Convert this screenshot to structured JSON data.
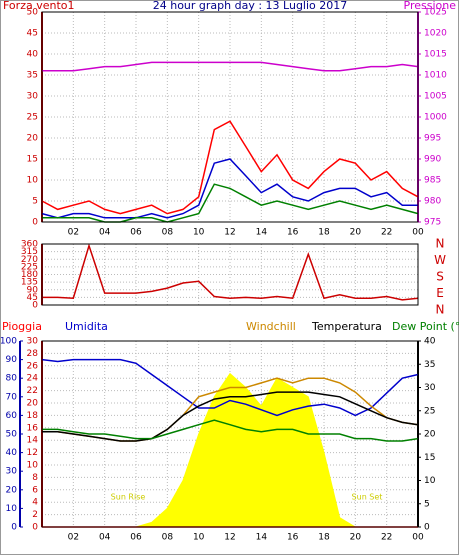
{
  "chart_data": [
    {
      "type": "line",
      "title": "24 hour graph day : 13 Luglio 2017",
      "y_label": "Forza vento1",
      "y2_label": "Pressione",
      "x": [
        0,
        1,
        2,
        3,
        4,
        5,
        6,
        7,
        8,
        9,
        10,
        11,
        12,
        13,
        14,
        15,
        16,
        17,
        18,
        19,
        20,
        21,
        22,
        23,
        24
      ],
      "xlim": [
        0,
        24
      ],
      "xticks": [
        {
          "value": 2,
          "label": "02"
        },
        {
          "value": 4,
          "label": "04"
        },
        {
          "value": 6,
          "label": "06"
        },
        {
          "value": 8,
          "label": "08"
        },
        10,
        12,
        14,
        16,
        18,
        20,
        22,
        {
          "value": 24,
          "label": "00"
        }
      ],
      "ylim": [
        0,
        50
      ],
      "yticks": [
        0,
        5,
        10,
        15,
        20,
        25,
        30,
        35,
        40,
        45,
        50
      ],
      "y2lim": [
        975,
        1025
      ],
      "y2ticks": [
        975,
        980,
        985,
        990,
        995,
        1000,
        1005,
        1010,
        1015,
        1020,
        1025
      ],
      "y_color": "#cc0000",
      "y2_color": "#cc00cc",
      "grid": true,
      "series": [
        {
          "color": "#ff0000",
          "values": [
            5,
            3,
            4,
            5,
            3,
            2,
            3,
            4,
            2,
            3,
            6,
            22,
            24,
            18,
            12,
            16,
            10,
            8,
            12,
            15,
            14,
            10,
            12,
            8,
            6
          ]
        },
        {
          "color": "#0000cc",
          "values": [
            2,
            1,
            2,
            2,
            1,
            1,
            1,
            2,
            1,
            2,
            4,
            14,
            15,
            11,
            7,
            9,
            6,
            5,
            7,
            8,
            8,
            6,
            7,
            4,
            4
          ]
        },
        {
          "color": "#008000",
          "values": [
            1,
            1,
            1,
            1,
            0,
            0,
            1,
            1,
            0,
            1,
            2,
            9,
            8,
            6,
            4,
            5,
            4,
            3,
            4,
            5,
            4,
            3,
            4,
            3,
            2
          ]
        },
        {
          "name": "Pressione",
          "axis": "y2",
          "color": "#cc00cc",
          "values": [
            1011,
            1011,
            1011,
            1011.5,
            1012,
            1012,
            1012.5,
            1013,
            1013,
            1013,
            1013,
            1013,
            1013,
            1013,
            1013,
            1012.5,
            1012,
            1011.5,
            1011,
            1011,
            1011.5,
            1012,
            1012,
            1012.5,
            1012
          ]
        }
      ]
    },
    {
      "type": "line",
      "direction_labels": [
        "N",
        "W",
        "S",
        "E",
        "N"
      ],
      "x": [
        0,
        1,
        2,
        3,
        4,
        5,
        6,
        7,
        8,
        9,
        10,
        11,
        12,
        13,
        14,
        15,
        16,
        17,
        18,
        19,
        20,
        21,
        22,
        23,
        24
      ],
      "xlim": [
        0,
        24
      ],
      "xticks": [
        2,
        4,
        6,
        8,
        10,
        12,
        14,
        16,
        18,
        20,
        22,
        24
      ],
      "ylim": [
        0,
        360
      ],
      "yticks": [
        0,
        45,
        90,
        135,
        180,
        225,
        270,
        315,
        360
      ],
      "y_color": "#cc0000",
      "grid": true,
      "series": [
        {
          "color": "#cc0000",
          "values": [
            45,
            45,
            40,
            350,
            70,
            70,
            70,
            80,
            100,
            130,
            140,
            50,
            40,
            45,
            40,
            50,
            40,
            300,
            40,
            60,
            40,
            40,
            50,
            30,
            40
          ]
        }
      ]
    },
    {
      "type": "line",
      "annotations": [
        "Sun Rise",
        "Sun Set"
      ],
      "x": [
        0,
        1,
        2,
        3,
        4,
        5,
        6,
        7,
        8,
        9,
        10,
        11,
        12,
        13,
        14,
        15,
        16,
        17,
        18,
        19,
        20,
        21,
        22,
        23,
        24
      ],
      "xlim": [
        0,
        24
      ],
      "xticks": [
        {
          "value": 2,
          "label": "02"
        },
        {
          "value": 4,
          "label": "04"
        },
        {
          "value": 6,
          "label": "06"
        },
        {
          "value": 8,
          "label": "08"
        },
        10,
        12,
        14,
        16,
        18,
        20,
        22,
        {
          "value": 24,
          "label": "00"
        }
      ],
      "ylim": [
        0,
        30
      ],
      "yticks": [
        0,
        2,
        4,
        6,
        8,
        10,
        12,
        14,
        16,
        18,
        20,
        22,
        24,
        26,
        28,
        30
      ],
      "y3lim": [
        0,
        100
      ],
      "y3ticks": [
        0,
        10,
        20,
        30,
        40,
        50,
        60,
        70,
        80,
        90,
        100
      ],
      "y2lim": [
        0,
        40
      ],
      "y2ticks": [
        0,
        5,
        10,
        15,
        20,
        25,
        30,
        35,
        40
      ],
      "y_color": "#cc0000",
      "y3_color": "#0000aa",
      "y2_color": "#000000",
      "grid": true,
      "series": [
        {
          "axis": "y2",
          "fill": true,
          "color": "#ffff00",
          "values": [
            0,
            0,
            0,
            0,
            0,
            0,
            0,
            1,
            4,
            10,
            20,
            28,
            33,
            30,
            26,
            32,
            30,
            28,
            16,
            2,
            0,
            0,
            0,
            0,
            0
          ]
        },
        {
          "name": "Pioggia",
          "color": "#ff0000",
          "values": [
            0,
            0,
            0,
            0,
            0,
            0,
            0,
            0,
            0,
            0,
            0,
            0,
            0,
            0,
            0,
            0,
            0,
            0,
            0,
            0,
            0,
            0,
            0,
            0,
            0
          ]
        },
        {
          "name": "Umidita",
          "axis": "y3",
          "color": "#0000cc",
          "values": [
            90,
            89,
            90,
            90,
            90,
            90,
            88,
            82,
            76,
            70,
            64,
            64,
            68,
            66,
            63,
            60,
            63,
            65,
            66,
            64,
            60,
            64,
            72,
            80,
            82
          ]
        },
        {
          "name": "Windchill",
          "axis": "y2",
          "color": "#cc8800",
          "values": [
            20.5,
            20.5,
            20,
            19.5,
            19,
            18.5,
            18.5,
            19,
            21,
            24,
            28,
            29,
            30,
            30,
            31,
            32,
            31,
            32,
            32,
            31,
            29,
            26,
            23.5,
            22.5,
            22
          ]
        },
        {
          "name": "Temperatura",
          "axis": "y2",
          "color": "#000000",
          "values": [
            20.5,
            20.5,
            20,
            19.5,
            19,
            18.5,
            18.5,
            19,
            21,
            24,
            26,
            27.5,
            28,
            28,
            28.5,
            29,
            29,
            29,
            28.5,
            28,
            26.5,
            25,
            23.5,
            22.5,
            22
          ]
        },
        {
          "name": "Dew Point (°C",
          "axis": "y2",
          "color": "#008000",
          "values": [
            21,
            21,
            20.5,
            20,
            20,
            19.5,
            19,
            19,
            20,
            21,
            22,
            23,
            22,
            21,
            20.5,
            21,
            21,
            20,
            20,
            20,
            19,
            19,
            18.5,
            18.5,
            19
          ]
        }
      ]
    }
  ]
}
